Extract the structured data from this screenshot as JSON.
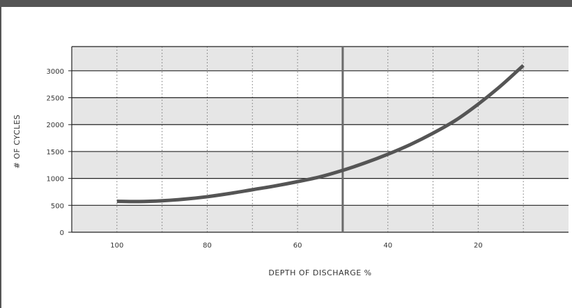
{
  "chart_data": {
    "type": "line",
    "xlabel": "DEPTH OF DISCHARGE %",
    "ylabel": "# OF CYCLES",
    "xlim": [
      110,
      0
    ],
    "ylim": [
      0,
      3450
    ],
    "x_reversed": true,
    "x_ticks": [
      100,
      80,
      60,
      40,
      20
    ],
    "x_tick_labels": [
      "100",
      "80",
      "60",
      "40",
      "20"
    ],
    "y_ticks": [
      0,
      500,
      1000,
      1500,
      2000,
      2500,
      3000
    ],
    "y_tick_labels": [
      "0",
      "500",
      "1000",
      "1500",
      "2000",
      "2500",
      "3000"
    ],
    "vertical_gridlines_dotted": [
      100,
      90,
      80,
      70,
      60,
      40,
      30,
      20,
      10
    ],
    "reference_line_x": 50,
    "grid": true,
    "band_colors": [
      "#e6e6e6",
      "#ffffff"
    ],
    "line_color": "#555555",
    "series": [
      {
        "x": [
          100,
          95,
          90,
          85,
          80,
          75,
          70,
          65,
          60,
          55,
          50,
          45,
          40,
          35,
          30,
          25,
          20,
          15,
          10
        ],
        "y": [
          575,
          570,
          585,
          615,
          660,
          720,
          790,
          860,
          940,
          1030,
          1150,
          1290,
          1450,
          1630,
          1840,
          2080,
          2380,
          2720,
          3100
        ]
      }
    ]
  }
}
